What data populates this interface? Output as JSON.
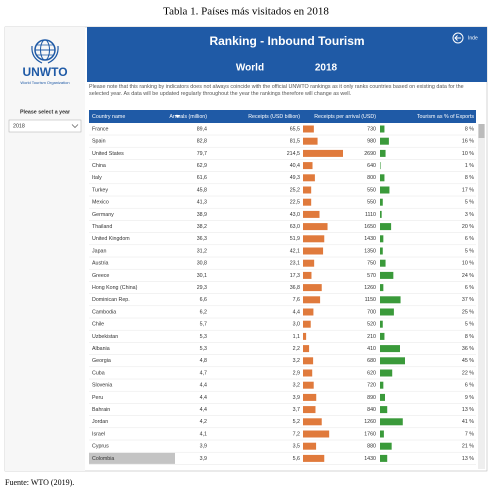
{
  "caption": "Tabla 1. Países más visitados en 2018",
  "source": "Fuente: WTO (2019).",
  "sidebar": {
    "logo_text": "UNWTO",
    "logo_subtext": "World Tourism Organization",
    "select_label": "Please select a year",
    "select_value": "2018"
  },
  "header": {
    "title": "Ranking - Inbound Tourism",
    "region": "World",
    "year": "2018",
    "nav_label": "Inde"
  },
  "note": "Please note that this ranking by indicators does not always coincide with the official UNWTO rankings as it only ranks countries based on existing data for the selected year. As data will be updated regularly throughout the year the rankings therefore will change as well.",
  "table": {
    "columns": [
      "Country name",
      "Arrivals (million)",
      "Receipts (USD billion)",
      "Receipts per arrival (USD)",
      "Tourism as % of Exports"
    ],
    "rows": [
      [
        "France",
        "89,4",
        "65,5",
        "730",
        "8 %"
      ],
      [
        "Spain",
        "82,8",
        "81,5",
        "980",
        "16 %"
      ],
      [
        "United States",
        "79,7",
        "214,5",
        "2690",
        "10 %"
      ],
      [
        "China",
        "62,9",
        "40,4",
        "640",
        "1 %"
      ],
      [
        "Italy",
        "61,6",
        "49,3",
        "800",
        "8 %"
      ],
      [
        "Turkey",
        "45,8",
        "25,2",
        "550",
        "17 %"
      ],
      [
        "Mexico",
        "41,3",
        "22,5",
        "550",
        "5 %"
      ],
      [
        "Germany",
        "38,9",
        "43,0",
        "1110",
        "3 %"
      ],
      [
        "Thailand",
        "38,2",
        "63,0",
        "1650",
        "20 %"
      ],
      [
        "United Kingdom",
        "36,3",
        "51,9",
        "1430",
        "6 %"
      ],
      [
        "Japan",
        "31,2",
        "42,1",
        "1350",
        "5 %"
      ],
      [
        "Austria",
        "30,8",
        "23,1",
        "750",
        "10 %"
      ],
      [
        "Greece",
        "30,1",
        "17,3",
        "570",
        "24 %"
      ],
      [
        "Hong Kong (China)",
        "29,3",
        "36,8",
        "1260",
        "6 %"
      ],
      [
        "Dominican Rep.",
        "6,6",
        "7,6",
        "1150",
        "37 %"
      ],
      [
        "Cambodia",
        "6,2",
        "4,4",
        "700",
        "25 %"
      ],
      [
        "Chile",
        "5,7",
        "3,0",
        "520",
        "5 %"
      ],
      [
        "Uzbekistan",
        "5,3",
        "1,1",
        "210",
        "8 %"
      ],
      [
        "Albania",
        "5,3",
        "2,2",
        "410",
        "36 %"
      ],
      [
        "Georgia",
        "4,8",
        "3,2",
        "680",
        "45 %"
      ],
      [
        "Cuba",
        "4,7",
        "2,9",
        "620",
        "22 %"
      ],
      [
        "Slovenia",
        "4,4",
        "3,2",
        "720",
        "6 %"
      ],
      [
        "Peru",
        "4,4",
        "3,9",
        "890",
        "9 %"
      ],
      [
        "Bahrain",
        "4,4",
        "3,7",
        "840",
        "13 %"
      ],
      [
        "Jordan",
        "4,2",
        "5,2",
        "1260",
        "41 %"
      ],
      [
        "Israel",
        "4,1",
        "7,2",
        "1760",
        "7 %"
      ],
      [
        "Cyprus",
        "3,9",
        "3,5",
        "880",
        "21 %"
      ],
      [
        "Colombia",
        "3,9",
        "5,6",
        "1430",
        "13 %"
      ]
    ]
  }
}
